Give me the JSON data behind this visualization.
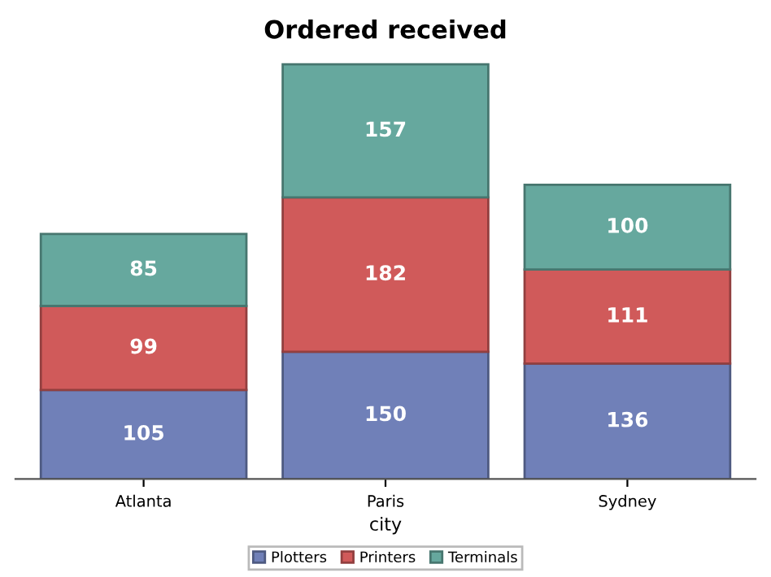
{
  "chart_data": {
    "type": "bar",
    "title": "Ordered received",
    "xlabel": "city",
    "stacked": true,
    "data_labels": true,
    "legend": "bottom",
    "categories": [
      "Atlanta",
      "Paris",
      "Sydney"
    ],
    "series": [
      {
        "name": "Plotters",
        "color": "#7080b8",
        "values": [
          105,
          150,
          136
        ]
      },
      {
        "name": "Printers",
        "color": "#d05a5a",
        "values": [
          99,
          182,
          111
        ]
      },
      {
        "name": "Terminals",
        "color": "#66a89e",
        "values": [
          85,
          157,
          100
        ]
      }
    ]
  }
}
